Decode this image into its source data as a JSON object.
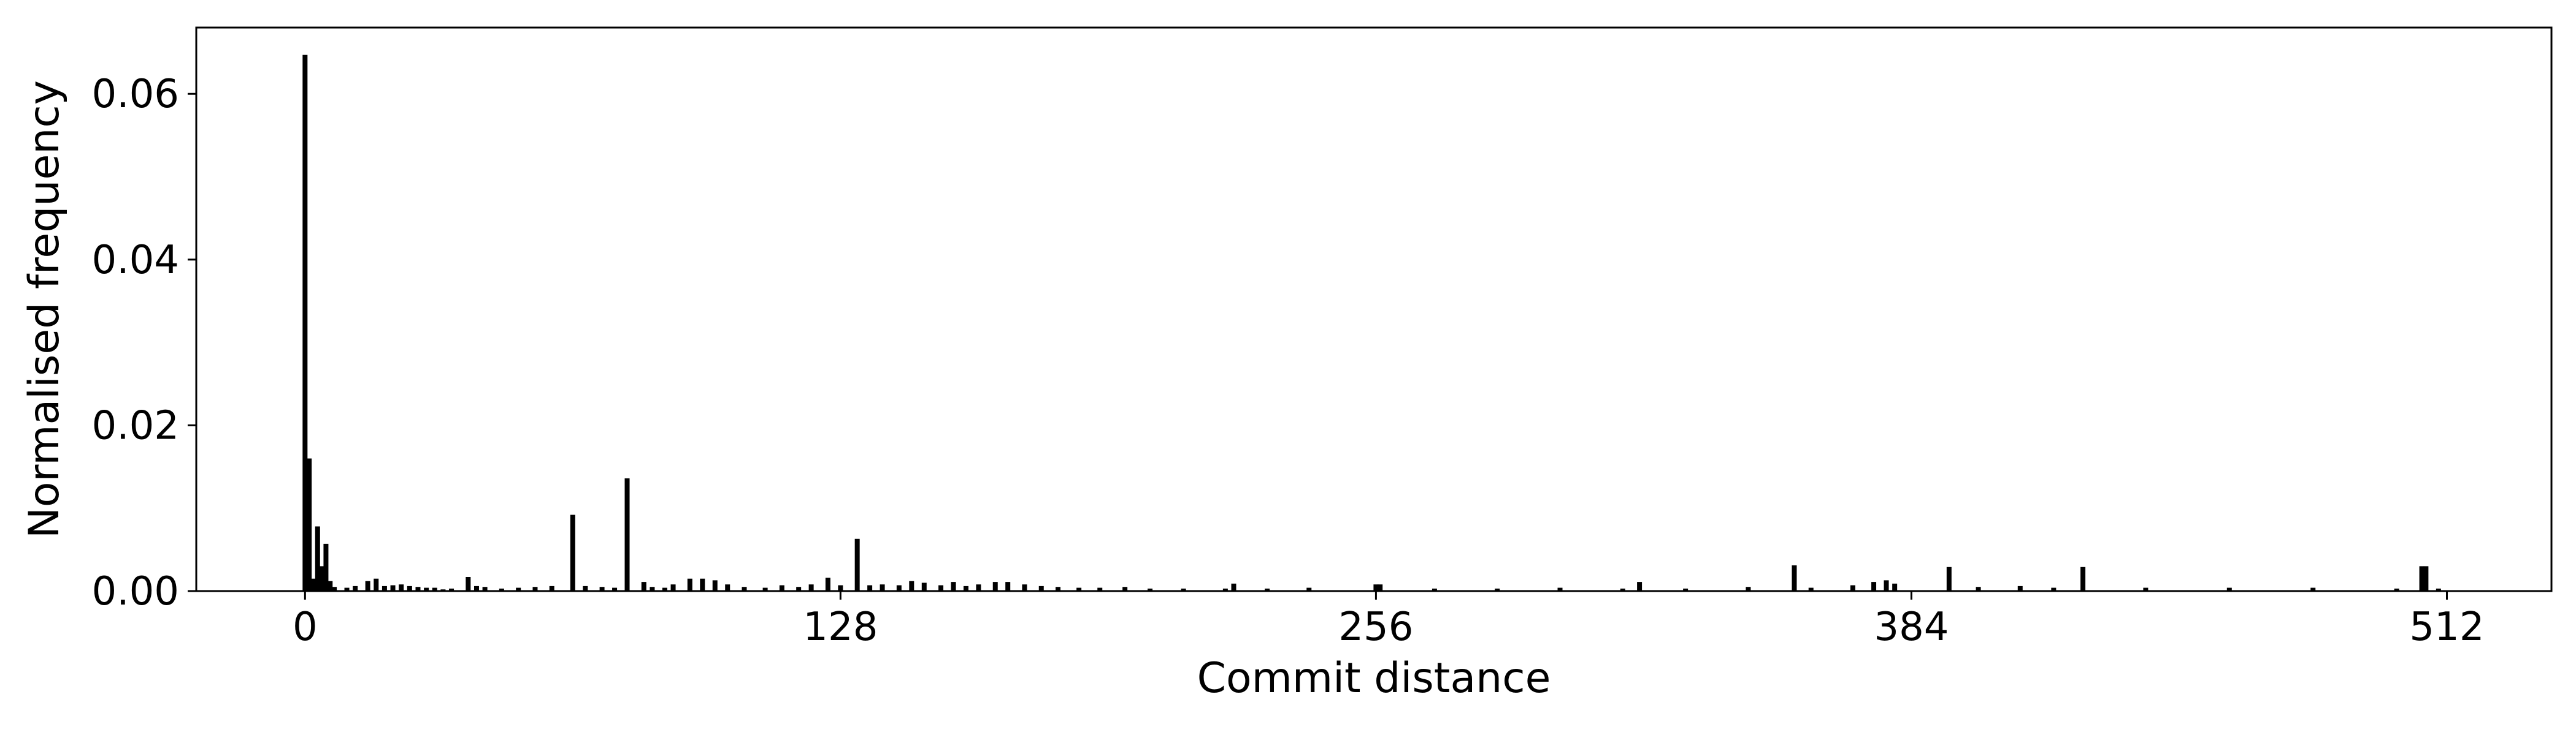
{
  "chart_data": {
    "type": "bar",
    "title": "",
    "xlabel": "Commit distance",
    "ylabel": "Normalised frequency",
    "xlim": [
      -26,
      537
    ],
    "ylim": [
      0,
      0.068
    ],
    "x_ticks": [
      0,
      128,
      256,
      384,
      512
    ],
    "x_tick_labels": [
      "0",
      "128",
      "256",
      "384",
      "512"
    ],
    "y_ticks": [
      0,
      0.02,
      0.04,
      0.06
    ],
    "y_tick_labels": [
      "0.00",
      "0.02",
      "0.04",
      "0.06"
    ],
    "grid": false,
    "bar_color": "#000000",
    "x": [
      0,
      1,
      2,
      3,
      4,
      5,
      6,
      7,
      10,
      12,
      15,
      17,
      19,
      21,
      23,
      25,
      27,
      29,
      31,
      33,
      35,
      39,
      41,
      43,
      47,
      51,
      55,
      59,
      64,
      67,
      71,
      74,
      77,
      81,
      83,
      86,
      88,
      92,
      95,
      98,
      101,
      105,
      110,
      114,
      118,
      121,
      125,
      128,
      132,
      135,
      138,
      142,
      145,
      148,
      152,
      155,
      158,
      161,
      165,
      168,
      172,
      176,
      180,
      185,
      190,
      196,
      202,
      210,
      220,
      222,
      230,
      240,
      256,
      257,
      270,
      285,
      300,
      315,
      319,
      330,
      345,
      356,
      360,
      370,
      375,
      378,
      380,
      393,
      400,
      410,
      418,
      425,
      440,
      460,
      480,
      500,
      506,
      507,
      510
    ],
    "values": [
      0.0647,
      0.016,
      0.0015,
      0.0078,
      0.003,
      0.0057,
      0.0012,
      0.0005,
      0.0004,
      0.0006,
      0.0012,
      0.0015,
      0.0006,
      0.0007,
      0.0008,
      0.0006,
      0.0005,
      0.0004,
      0.0004,
      0.0002,
      0.0003,
      0.0017,
      0.0006,
      0.0005,
      0.0003,
      0.0004,
      0.0005,
      0.0006,
      0.0092,
      0.0006,
      0.0005,
      0.0004,
      0.0136,
      0.0011,
      0.0005,
      0.0004,
      0.0008,
      0.0015,
      0.0015,
      0.0013,
      0.0008,
      0.0005,
      0.0004,
      0.0007,
      0.0005,
      0.0008,
      0.0016,
      0.0007,
      0.0063,
      0.0007,
      0.0008,
      0.0007,
      0.0012,
      0.001,
      0.0007,
      0.0011,
      0.0006,
      0.0008,
      0.0011,
      0.0011,
      0.0008,
      0.0006,
      0.0005,
      0.0004,
      0.0004,
      0.0005,
      0.0003,
      0.0003,
      0.0003,
      0.0009,
      0.0003,
      0.0004,
      0.0008,
      0.0008,
      0.0003,
      0.0003,
      0.0004,
      0.0003,
      0.0011,
      0.0003,
      0.0005,
      0.0031,
      0.0004,
      0.0007,
      0.0011,
      0.0013,
      0.0009,
      0.0029,
      0.0005,
      0.0006,
      0.0004,
      0.0029,
      0.0004,
      0.0004,
      0.0004,
      0.0003,
      0.003,
      0.003,
      0.0003
    ]
  }
}
